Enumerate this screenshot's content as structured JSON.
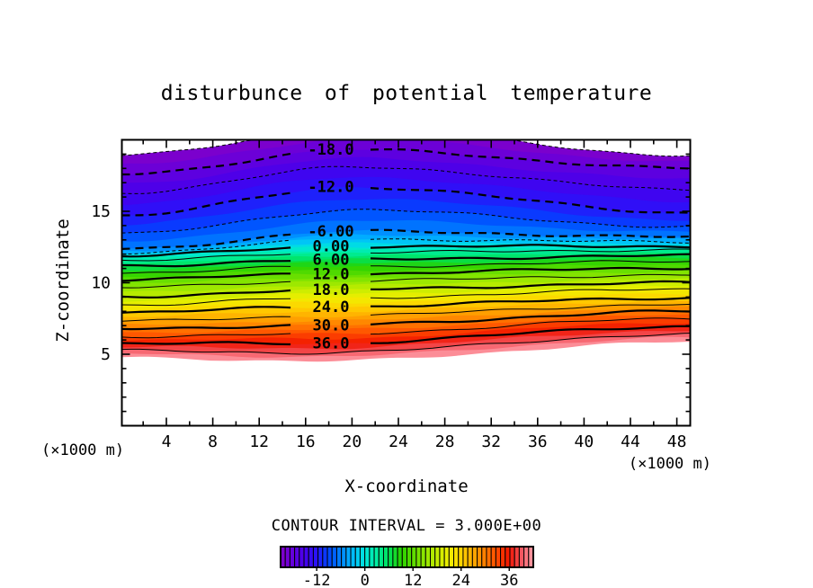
{
  "title": "disturbunce of potential temperature",
  "plot": {
    "x_axis": {
      "label": "X-coordinate",
      "unit_note_left": "(×1000 m)",
      "unit_note_right": "(×1000 m)",
      "major_ticks": [
        4,
        8,
        12,
        16,
        20,
        24,
        28,
        32,
        36,
        40,
        44,
        48
      ],
      "minor_tick_step": 2,
      "range": [
        0,
        49.2
      ]
    },
    "z_axis": {
      "label": "Z-coordinate",
      "major_ticks": [
        5,
        10,
        15
      ],
      "minor_tick_step": 1,
      "range": [
        0,
        20
      ]
    }
  },
  "footer": {
    "contour_interval_text": "CONTOUR INTERVAL = 3.000E+00"
  },
  "colorbar": {
    "range": [
      -21,
      42
    ],
    "cells": 54,
    "tick_values": [
      -12,
      0,
      12,
      24,
      36
    ],
    "tick_labels": [
      "-12",
      "0",
      "12",
      "24",
      "36"
    ]
  },
  "chart_data": {
    "type": "contour",
    "title": "disturbunce of potential temperature",
    "xlabel": "X-coordinate (×1000 m)",
    "ylabel": "Z-coordinate (×1000 m)",
    "x_range": [
      0,
      49.2
    ],
    "z_range": [
      0,
      20
    ],
    "contour_interval": 3.0,
    "negative_style": "dashed",
    "positive_style": "solid",
    "contour_labels": [
      {
        "v": -18,
        "text": "-18.0"
      },
      {
        "v": -12,
        "text": "-12.0"
      },
      {
        "v": -6,
        "text": "-6.00"
      },
      {
        "v": 0,
        "text": "0.00"
      },
      {
        "v": 6,
        "text": "6.00"
      },
      {
        "v": 12,
        "text": "12.0"
      },
      {
        "v": 18,
        "text": "18.0"
      },
      {
        "v": 24,
        "text": "24.0"
      },
      {
        "v": 30,
        "text": "30.0"
      },
      {
        "v": 36,
        "text": "36.0"
      }
    ],
    "contours": [
      {
        "v": -21,
        "zl": 18.9,
        "zm": 20.8,
        "zr": 18.9
      },
      {
        "v": -18,
        "zl": 17.6,
        "zm": 19.3,
        "zr": 18.0
      },
      {
        "v": -15,
        "zl": 16.3,
        "zm": 18.1,
        "zr": 16.5
      },
      {
        "v": -12,
        "zl": 14.7,
        "zm": 16.7,
        "zr": 14.9
      },
      {
        "v": -9,
        "zl": 13.4,
        "zm": 15.1,
        "zr": 13.9
      },
      {
        "v": -6,
        "zl": 12.35,
        "zm": 13.6,
        "zr": 13.2
      },
      {
        "v": -3,
        "zl": 12.1,
        "zm": 13.05,
        "zr": 12.85
      },
      {
        "v": 0,
        "zl": 11.9,
        "zm": 12.55,
        "zr": 12.55
      },
      {
        "v": 3,
        "zl": 11.5,
        "zm": 12.1,
        "zr": 12.3
      },
      {
        "v": 6,
        "zl": 11.15,
        "zm": 11.6,
        "zr": 11.9
      },
      {
        "v": 9,
        "zl": 10.7,
        "zm": 11.1,
        "zr": 11.5
      },
      {
        "v": 12,
        "zl": 10.2,
        "zm": 10.6,
        "zr": 11.05
      },
      {
        "v": 15,
        "zl": 9.65,
        "zm": 10.1,
        "zr": 10.55
      },
      {
        "v": 18,
        "zl": 9.0,
        "zm": 9.5,
        "zr": 10.0
      },
      {
        "v": 21,
        "zl": 8.45,
        "zm": 8.9,
        "zr": 9.55
      },
      {
        "v": 24,
        "zl": 7.9,
        "zm": 8.3,
        "zr": 8.95
      },
      {
        "v": 27,
        "zl": 7.3,
        "zm": 7.65,
        "zr": 8.5
      },
      {
        "v": 30,
        "zl": 6.8,
        "zm": 7.0,
        "zr": 8.0
      },
      {
        "v": 33,
        "zl": 6.25,
        "zm": 6.4,
        "zr": 7.5
      },
      {
        "v": 36,
        "zl": 5.75,
        "zm": 5.75,
        "zr": 6.95
      },
      {
        "v": 39,
        "zl": 5.25,
        "zm": 5.1,
        "zr": 6.4
      },
      {
        "v": 42,
        "zl": 4.85,
        "zm": 4.55,
        "zr": 5.9
      }
    ],
    "colormap": [
      {
        "v": -21,
        "c": "#8200c8"
      },
      {
        "v": -18,
        "c": "#6400dc"
      },
      {
        "v": -15,
        "c": "#4600ec"
      },
      {
        "v": -12,
        "c": "#2814fa"
      },
      {
        "v": -9,
        "c": "#0046ff"
      },
      {
        "v": -6,
        "c": "#0082ff"
      },
      {
        "v": -3,
        "c": "#00baff"
      },
      {
        "v": 0,
        "c": "#00e6dc"
      },
      {
        "v": 3,
        "c": "#00eea0"
      },
      {
        "v": 6,
        "c": "#00e25a"
      },
      {
        "v": 9,
        "c": "#28d200"
      },
      {
        "v": 12,
        "c": "#5cdc00"
      },
      {
        "v": 15,
        "c": "#90e600"
      },
      {
        "v": 18,
        "c": "#c3ec00"
      },
      {
        "v": 21,
        "c": "#f0ee00"
      },
      {
        "v": 24,
        "c": "#ffd200"
      },
      {
        "v": 27,
        "c": "#ffaa00"
      },
      {
        "v": 30,
        "c": "#ff7d00"
      },
      {
        "v": 33,
        "c": "#ff4b00"
      },
      {
        "v": 36,
        "c": "#f01400"
      },
      {
        "v": 39,
        "c": "#f4555f"
      },
      {
        "v": 42,
        "c": "#ffa0aa"
      }
    ]
  }
}
